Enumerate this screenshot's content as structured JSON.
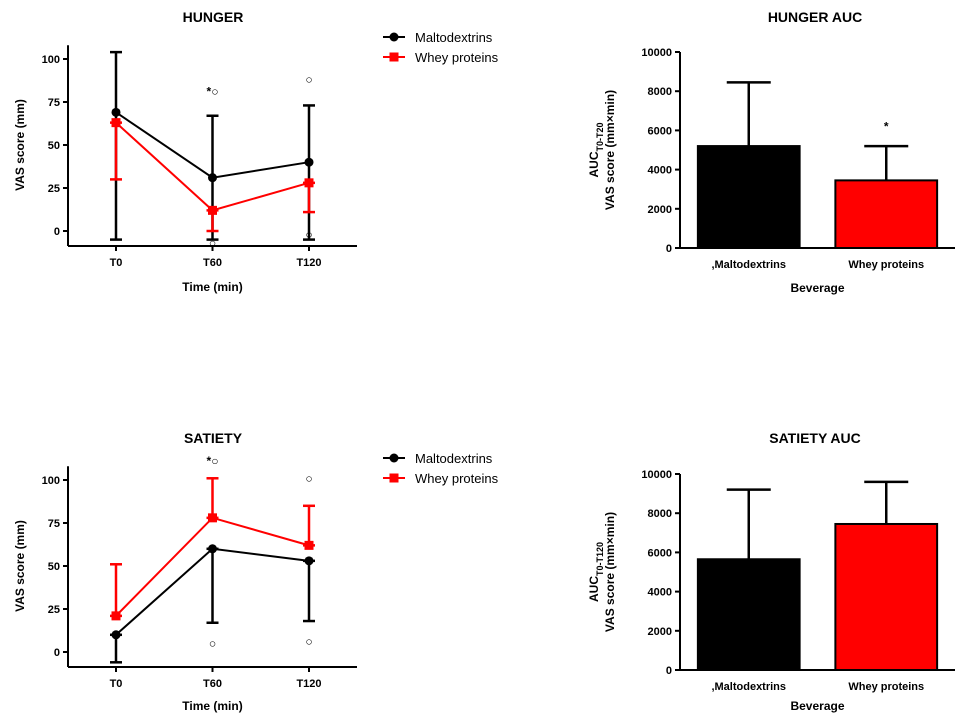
{
  "chart_data": [
    {
      "type": "line",
      "title": "HUNGER",
      "xlabel": "Time (min)",
      "ylabel": "VAS score (mm)",
      "categories": [
        "T0",
        "T60",
        "T120"
      ],
      "y_ticks": [
        "0",
        "25",
        "50",
        "75",
        "100"
      ],
      "ylim": [
        -7,
        112
      ],
      "legend": "right",
      "series": [
        {
          "name": "Maltodextrins",
          "color": "#000000",
          "marker": "circle",
          "values": [
            69,
            31,
            40
          ],
          "err_upper": [
            104,
            67,
            73
          ],
          "err_lower": [
            -5,
            -5,
            -5
          ]
        },
        {
          "name": "Whey proteins",
          "color": "#ff0000",
          "marker": "square",
          "values": [
            63,
            12,
            28
          ],
          "err_upper": [
            63,
            12,
            28
          ],
          "err_lower": [
            30,
            0,
            11
          ]
        }
      ],
      "annotations": [
        {
          "x": "T60",
          "text": "*○",
          "y": 81
        },
        {
          "x": "T60",
          "text": "○",
          "y": -7
        },
        {
          "x": "T120",
          "text": "○",
          "y": 88
        },
        {
          "x": "T120",
          "text": "○",
          "y": -2
        }
      ]
    },
    {
      "type": "bar",
      "title": "HUNGER AUC",
      "xlabel": "Beverage",
      "ylabel_line1": "AUC",
      "ylabel_sub": "T0-T20",
      "ylabel_line2": "VAS score (mm×min)",
      "categories": [
        ",Maltodextrins",
        "Whey proteins"
      ],
      "colors": [
        "#000000",
        "#ff0000"
      ],
      "values": [
        5200,
        3450
      ],
      "err_upper": [
        8450,
        5200
      ],
      "y_ticks": [
        "0",
        "2000",
        "4000",
        "6000",
        "8000",
        "10000"
      ],
      "ylim": [
        0,
        10000
      ],
      "annotations": [
        {
          "category": "Whey proteins",
          "text": "*",
          "y": 6200
        }
      ]
    },
    {
      "type": "line",
      "title": "SATIETY",
      "xlabel": "Time (min)",
      "ylabel": "VAS score (mm)",
      "categories": [
        "T0",
        "T60",
        "T120"
      ],
      "y_ticks": [
        "0",
        "25",
        "50",
        "75",
        "100"
      ],
      "ylim": [
        -7,
        112
      ],
      "legend": "right",
      "series": [
        {
          "name": "Maltodextrins",
          "color": "#000000",
          "marker": "circle",
          "values": [
            10,
            60,
            53
          ],
          "err_upper": [
            10,
            60,
            53
          ],
          "err_lower": [
            -6,
            17,
            18
          ]
        },
        {
          "name": "Whey proteins",
          "color": "#ff0000",
          "marker": "square",
          "values": [
            21,
            78,
            62
          ],
          "err_upper": [
            51,
            101,
            85
          ],
          "err_lower": [
            21,
            78,
            62
          ]
        }
      ],
      "annotations": [
        {
          "x": "T60",
          "text": "*○",
          "y": 111
        },
        {
          "x": "T60",
          "text": "○",
          "y": 5
        },
        {
          "x": "T120",
          "text": "○",
          "y": 101
        },
        {
          "x": "T120",
          "text": "○",
          "y": 6
        }
      ]
    },
    {
      "type": "bar",
      "title": "SATIETY AUC",
      "xlabel": "Beverage",
      "ylabel_line1": "AUC",
      "ylabel_sub": "T0-T120",
      "ylabel_line2": "VAS score (mm×min)",
      "categories": [
        ",Maltodextrins",
        "Whey proteins"
      ],
      "colors": [
        "#000000",
        "#ff0000"
      ],
      "values": [
        5650,
        7450
      ],
      "err_upper": [
        9200,
        9600
      ],
      "y_ticks": [
        "0",
        "2000",
        "4000",
        "6000",
        "8000",
        "10000"
      ],
      "ylim": [
        0,
        10000
      ],
      "annotations": []
    }
  ]
}
